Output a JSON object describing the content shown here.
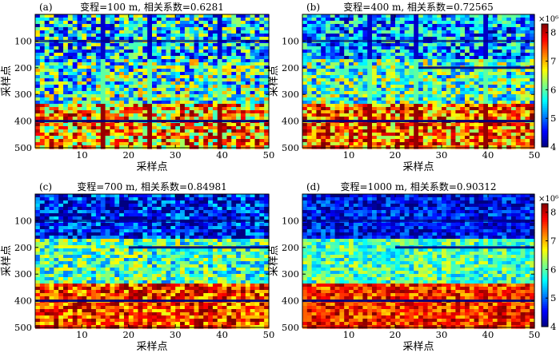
{
  "chart_data": [
    {
      "type": "heatmap",
      "panel_label": "(a)",
      "title": "变程=100 m, 相关系数=0.6281",
      "xlabel": "采样点",
      "ylabel": "采样点",
      "xlim": [
        0,
        50
      ],
      "ylim": [
        0,
        500
      ],
      "xticks": [
        "10",
        "20",
        "30",
        "40",
        "50"
      ],
      "yticks": [
        "100",
        "200",
        "300",
        "400",
        "500"
      ],
      "range": 100,
      "stripe_columns": [
        15,
        25,
        40
      ],
      "thin_line_columns": [],
      "colorbar": false,
      "layers": [
        {
          "from": 0,
          "to": 170,
          "level": 5.5
        },
        {
          "from": 170,
          "to": 335,
          "level": 5.8
        },
        {
          "from": 335,
          "to": 500,
          "level": 7.0
        }
      ]
    },
    {
      "type": "heatmap",
      "panel_label": "(b)",
      "title": "变程=400 m, 相关系数=0.72565",
      "xlabel": "采样点",
      "ylabel": "采样点",
      "xlim": [
        0,
        50
      ],
      "ylim": [
        0,
        500
      ],
      "xticks": [
        "10",
        "20",
        "30",
        "40",
        "50"
      ],
      "yticks": [
        "100",
        "200",
        "300",
        "400",
        "500"
      ],
      "range": 400,
      "stripe_columns": [
        15,
        25,
        40
      ],
      "thin_line_columns": [
        25,
        40
      ],
      "colorbar": true,
      "colorbar_ticks": [
        "4",
        "5",
        "6",
        "7",
        "8"
      ],
      "colorbar_exponent": "×10⁶",
      "layers": [
        {
          "from": 0,
          "to": 170,
          "level": 5.2
        },
        {
          "from": 170,
          "to": 335,
          "level": 5.9
        },
        {
          "from": 335,
          "to": 500,
          "level": 7.3
        }
      ]
    },
    {
      "type": "heatmap",
      "panel_label": "(c)",
      "title": "变程=700 m, 相关系数=0.84981",
      "xlabel": "采样点",
      "ylabel": "采样点",
      "xlim": [
        0,
        50
      ],
      "ylim": [
        0,
        500
      ],
      "xticks": [
        "10",
        "20",
        "30",
        "40",
        "50"
      ],
      "yticks": [
        "100",
        "200",
        "300",
        "400",
        "500"
      ],
      "range": 700,
      "stripe_columns": [
        15,
        25,
        40
      ],
      "thin_line_columns": [
        20,
        40
      ],
      "colorbar": false,
      "layers": [
        {
          "from": 0,
          "to": 170,
          "level": 4.6
        },
        {
          "from": 170,
          "to": 335,
          "level": 5.9
        },
        {
          "from": 335,
          "to": 500,
          "level": 7.5
        }
      ]
    },
    {
      "type": "heatmap",
      "panel_label": "(d)",
      "title": "变程=1000 m, 相关系数=0.90312",
      "xlabel": "采样点",
      "ylabel": "采样点",
      "xlim": [
        0,
        50
      ],
      "ylim": [
        0,
        500
      ],
      "xticks": [
        "10",
        "20",
        "30",
        "40",
        "50"
      ],
      "yticks": [
        "100",
        "200",
        "300",
        "400",
        "500"
      ],
      "range": 1000,
      "stripe_columns": [
        15,
        25,
        40
      ],
      "thin_line_columns": [
        20,
        40
      ],
      "colorbar": true,
      "colorbar_ticks": [
        "4",
        "5",
        "6",
        "7",
        "8"
      ],
      "colorbar_exponent": "×10⁶",
      "layers": [
        {
          "from": 0,
          "to": 170,
          "level": 4.5
        },
        {
          "from": 170,
          "to": 335,
          "level": 5.9
        },
        {
          "from": 335,
          "to": 500,
          "level": 7.6
        }
      ]
    }
  ],
  "colormap": "jet",
  "color_range": [
    4,
    8.3
  ]
}
